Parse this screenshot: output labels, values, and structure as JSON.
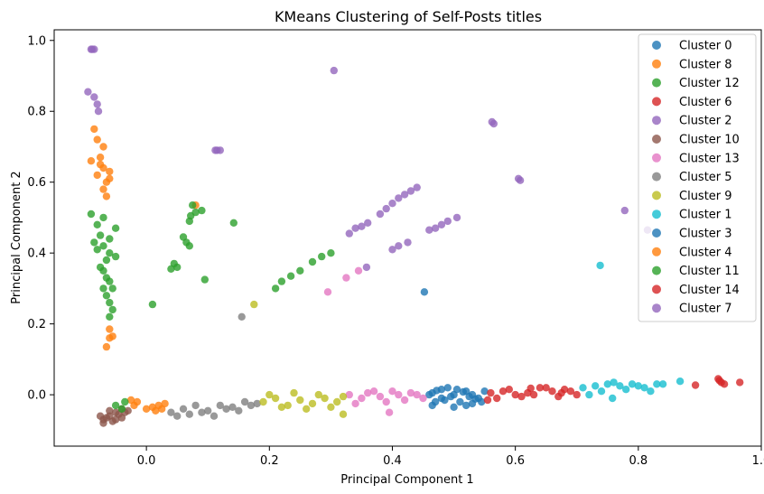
{
  "chart_data": {
    "type": "scatter",
    "title": "KMeans Clustering of Self-Posts titles",
    "xlabel": "Principal Component 1",
    "ylabel": "Principal Component 2",
    "xlim": [
      -0.15,
      1.0
    ],
    "ylim": [
      -0.145,
      1.03
    ],
    "xticks": [
      0.0,
      0.2,
      0.4,
      0.6,
      0.8,
      1.0
    ],
    "yticks": [
      0.0,
      0.2,
      0.4,
      0.6,
      0.8,
      1.0
    ],
    "xtick_labels": [
      "0.0",
      "0.2",
      "0.4",
      "0.6",
      "0.8",
      "1.0"
    ],
    "ytick_labels": [
      "0.0",
      "0.2",
      "0.4",
      "0.6",
      "0.8",
      "1.0"
    ],
    "grid": false,
    "legend_position": "upper-right",
    "marker_alpha": 0.8,
    "series": [
      {
        "name": "Cluster 0",
        "color": "#1f77b4",
        "points": [
          [
            0.46,
            0.0
          ],
          [
            0.48,
            -0.01
          ],
          [
            0.5,
            0.0
          ],
          [
            0.52,
            0.01
          ],
          [
            0.54,
            -0.01
          ],
          [
            0.47,
            -0.02
          ],
          [
            0.49,
            0.02
          ],
          [
            0.51,
            -0.02
          ],
          [
            0.53,
            0.0
          ],
          [
            0.55,
            0.01
          ],
          [
            0.465,
            0.005
          ],
          [
            0.485,
            -0.015
          ],
          [
            0.505,
            0.015
          ],
          [
            0.525,
            -0.005
          ],
          [
            0.545,
            -0.02
          ],
          [
            0.472,
            0.012
          ],
          [
            0.495,
            -0.005
          ],
          [
            0.515,
            0.008
          ],
          [
            0.535,
            -0.012
          ],
          [
            0.452,
            0.29
          ]
        ]
      },
      {
        "name": "Cluster 8",
        "color": "#ff7f0e",
        "points": [
          [
            -0.09,
            0.66
          ],
          [
            -0.08,
            0.62
          ],
          [
            -0.07,
            0.58
          ],
          [
            -0.075,
            0.65
          ],
          [
            -0.065,
            0.6
          ],
          [
            -0.08,
            0.72
          ],
          [
            -0.085,
            0.75
          ],
          [
            -0.07,
            0.7
          ],
          [
            -0.06,
            0.63
          ],
          [
            -0.075,
            0.67
          ],
          [
            -0.065,
            0.56
          ],
          [
            -0.06,
            0.61
          ],
          [
            -0.07,
            0.64
          ],
          [
            0.08,
            0.535
          ]
        ]
      },
      {
        "name": "Cluster 12",
        "color": "#2ca02c",
        "points": [
          [
            -0.09,
            0.51
          ],
          [
            -0.08,
            0.48
          ],
          [
            -0.075,
            0.45
          ],
          [
            -0.07,
            0.42
          ],
          [
            -0.06,
            0.4
          ],
          [
            -0.065,
            0.38
          ],
          [
            -0.07,
            0.35
          ],
          [
            -0.06,
            0.32
          ],
          [
            -0.055,
            0.3
          ],
          [
            -0.065,
            0.28
          ],
          [
            -0.06,
            0.26
          ],
          [
            -0.07,
            0.5
          ],
          [
            -0.05,
            0.47
          ],
          [
            -0.06,
            0.44
          ],
          [
            -0.075,
            0.36
          ],
          [
            -0.055,
            0.24
          ],
          [
            -0.08,
            0.41
          ],
          [
            -0.065,
            0.33
          ],
          [
            -0.05,
            0.39
          ],
          [
            -0.06,
            0.22
          ],
          [
            -0.085,
            0.43
          ],
          [
            -0.07,
            0.3
          ]
        ]
      },
      {
        "name": "Cluster 6",
        "color": "#d62728",
        "points": [
          [
            0.58,
            0.01
          ],
          [
            0.6,
            0.0
          ],
          [
            0.62,
            0.005
          ],
          [
            0.64,
            0.02
          ],
          [
            0.66,
            0.01
          ],
          [
            0.68,
            0.015
          ],
          [
            0.7,
            0.0
          ],
          [
            0.57,
            -0.01
          ],
          [
            0.59,
            0.015
          ],
          [
            0.61,
            -0.005
          ],
          [
            0.63,
            0.0
          ],
          [
            0.65,
            0.02
          ],
          [
            0.67,
            -0.005
          ],
          [
            0.69,
            0.01
          ],
          [
            0.56,
            0.005
          ],
          [
            0.555,
            -0.015
          ],
          [
            0.625,
            0.018
          ],
          [
            0.675,
            0.005
          ]
        ]
      },
      {
        "name": "Cluster 2",
        "color": "#9467bd",
        "points": [
          [
            -0.09,
            0.975
          ],
          [
            -0.088,
            0.975
          ],
          [
            -0.085,
            0.975
          ],
          [
            0.305,
            0.915
          ],
          [
            0.565,
            0.765
          ],
          [
            0.562,
            0.77
          ],
          [
            0.605,
            0.61
          ],
          [
            0.608,
            0.605
          ]
        ]
      },
      {
        "name": "Cluster 10",
        "color": "#8c564b",
        "points": [
          [
            -0.07,
            -0.07
          ],
          [
            -0.06,
            -0.06
          ],
          [
            -0.05,
            -0.05
          ],
          [
            -0.04,
            -0.04
          ],
          [
            -0.055,
            -0.075
          ],
          [
            -0.065,
            -0.065
          ],
          [
            -0.045,
            -0.055
          ],
          [
            -0.035,
            -0.05
          ],
          [
            -0.07,
            -0.08
          ],
          [
            -0.06,
            -0.045
          ],
          [
            -0.05,
            -0.07
          ],
          [
            -0.075,
            -0.06
          ],
          [
            -0.04,
            -0.065
          ],
          [
            -0.03,
            -0.045
          ]
        ]
      },
      {
        "name": "Cluster 13",
        "color": "#e377c2",
        "points": [
          [
            0.33,
            0.0
          ],
          [
            0.35,
            -0.01
          ],
          [
            0.37,
            0.01
          ],
          [
            0.39,
            -0.02
          ],
          [
            0.41,
            0.0
          ],
          [
            0.43,
            0.005
          ],
          [
            0.45,
            -0.01
          ],
          [
            0.34,
            -0.025
          ],
          [
            0.36,
            0.005
          ],
          [
            0.38,
            -0.005
          ],
          [
            0.4,
            0.01
          ],
          [
            0.42,
            -0.015
          ],
          [
            0.44,
            0.0
          ],
          [
            0.395,
            -0.05
          ],
          [
            0.295,
            0.29
          ],
          [
            0.325,
            0.33
          ],
          [
            0.345,
            0.35
          ]
        ]
      },
      {
        "name": "Cluster 5",
        "color": "#7f7f7f",
        "points": [
          [
            0.04,
            -0.05
          ],
          [
            0.06,
            -0.04
          ],
          [
            0.08,
            -0.03
          ],
          [
            0.1,
            -0.045
          ],
          [
            0.12,
            -0.03
          ],
          [
            0.14,
            -0.035
          ],
          [
            0.16,
            -0.02
          ],
          [
            0.18,
            -0.025
          ],
          [
            0.05,
            -0.06
          ],
          [
            0.07,
            -0.055
          ],
          [
            0.09,
            -0.05
          ],
          [
            0.11,
            -0.06
          ],
          [
            0.13,
            -0.04
          ],
          [
            0.15,
            -0.045
          ],
          [
            0.17,
            -0.03
          ],
          [
            0.155,
            0.22
          ]
        ]
      },
      {
        "name": "Cluster 9",
        "color": "#bcbd22",
        "points": [
          [
            0.19,
            -0.02
          ],
          [
            0.21,
            -0.01
          ],
          [
            0.23,
            -0.03
          ],
          [
            0.25,
            -0.015
          ],
          [
            0.27,
            -0.025
          ],
          [
            0.29,
            -0.01
          ],
          [
            0.31,
            -0.02
          ],
          [
            0.2,
            0.0
          ],
          [
            0.22,
            -0.035
          ],
          [
            0.24,
            0.005
          ],
          [
            0.26,
            -0.04
          ],
          [
            0.28,
            0.0
          ],
          [
            0.3,
            -0.035
          ],
          [
            0.32,
            -0.005
          ],
          [
            0.32,
            -0.055
          ],
          [
            0.175,
            0.255
          ]
        ]
      },
      {
        "name": "Cluster 1",
        "color": "#17becf",
        "points": [
          [
            0.71,
            0.02
          ],
          [
            0.73,
            0.025
          ],
          [
            0.75,
            0.03
          ],
          [
            0.77,
            0.025
          ],
          [
            0.79,
            0.03
          ],
          [
            0.81,
            0.02
          ],
          [
            0.83,
            0.03
          ],
          [
            0.72,
            0.0
          ],
          [
            0.74,
            0.01
          ],
          [
            0.76,
            0.035
          ],
          [
            0.78,
            0.015
          ],
          [
            0.8,
            0.025
          ],
          [
            0.82,
            0.01
          ],
          [
            0.84,
            0.03
          ],
          [
            0.868,
            0.038
          ],
          [
            0.758,
            -0.01
          ],
          [
            0.738,
            0.365
          ]
        ]
      },
      {
        "name": "Cluster 3",
        "color": "#1f77b4",
        "points": [
          [
            0.465,
            -0.03
          ],
          [
            0.5,
            -0.035
          ],
          [
            0.53,
            -0.025
          ],
          [
            0.48,
            0.015
          ],
          [
            0.52,
            -0.03
          ]
        ]
      },
      {
        "name": "Cluster 4",
        "color": "#ff7f0e",
        "points": [
          [
            -0.025,
            -0.015
          ],
          [
            -0.02,
            -0.03
          ],
          [
            0.0,
            -0.04
          ],
          [
            0.01,
            -0.035
          ],
          [
            0.02,
            -0.03
          ],
          [
            0.03,
            -0.025
          ],
          [
            -0.015,
            -0.02
          ],
          [
            0.015,
            -0.045
          ],
          [
            0.025,
            -0.04
          ],
          [
            -0.06,
            0.185
          ],
          [
            -0.055,
            0.165
          ],
          [
            -0.065,
            0.135
          ],
          [
            -0.06,
            0.16
          ]
        ]
      },
      {
        "name": "Cluster 11",
        "color": "#2ca02c",
        "points": [
          [
            0.075,
            0.535
          ],
          [
            0.072,
            0.505
          ],
          [
            0.08,
            0.515
          ],
          [
            0.09,
            0.52
          ],
          [
            0.07,
            0.49
          ],
          [
            0.065,
            0.43
          ],
          [
            0.06,
            0.445
          ],
          [
            0.07,
            0.42
          ],
          [
            0.045,
            0.37
          ],
          [
            0.04,
            0.355
          ],
          [
            0.05,
            0.36
          ],
          [
            0.01,
            0.255
          ],
          [
            0.095,
            0.325
          ],
          [
            0.142,
            0.485
          ],
          [
            0.21,
            0.3
          ],
          [
            0.22,
            0.32
          ],
          [
            0.235,
            0.335
          ],
          [
            0.25,
            0.35
          ],
          [
            0.27,
            0.375
          ],
          [
            0.285,
            0.39
          ],
          [
            0.3,
            0.4
          ],
          [
            -0.04,
            -0.04
          ],
          [
            -0.05,
            -0.03
          ],
          [
            -0.035,
            -0.02
          ]
        ]
      },
      {
        "name": "Cluster 14",
        "color": "#d62728",
        "points": [
          [
            0.93,
            0.045
          ],
          [
            0.935,
            0.035
          ],
          [
            0.94,
            0.03
          ],
          [
            0.932,
            0.04
          ],
          [
            0.965,
            0.035
          ],
          [
            0.893,
            0.027
          ]
        ]
      },
      {
        "name": "Cluster 7",
        "color": "#9467bd",
        "points": [
          [
            -0.095,
            0.855
          ],
          [
            -0.085,
            0.84
          ],
          [
            -0.08,
            0.82
          ],
          [
            -0.078,
            0.8
          ],
          [
            0.115,
            0.69
          ],
          [
            0.112,
            0.69
          ],
          [
            0.12,
            0.69
          ],
          [
            0.33,
            0.455
          ],
          [
            0.34,
            0.47
          ],
          [
            0.35,
            0.475
          ],
          [
            0.36,
            0.485
          ],
          [
            0.38,
            0.51
          ],
          [
            0.39,
            0.525
          ],
          [
            0.4,
            0.54
          ],
          [
            0.41,
            0.555
          ],
          [
            0.42,
            0.565
          ],
          [
            0.43,
            0.575
          ],
          [
            0.44,
            0.585
          ],
          [
            0.46,
            0.465
          ],
          [
            0.47,
            0.47
          ],
          [
            0.48,
            0.48
          ],
          [
            0.49,
            0.49
          ],
          [
            0.505,
            0.5
          ],
          [
            0.4,
            0.41
          ],
          [
            0.41,
            0.42
          ],
          [
            0.425,
            0.43
          ],
          [
            0.358,
            0.36
          ],
          [
            0.778,
            0.52
          ],
          [
            0.815,
            0.465
          ]
        ]
      }
    ]
  }
}
